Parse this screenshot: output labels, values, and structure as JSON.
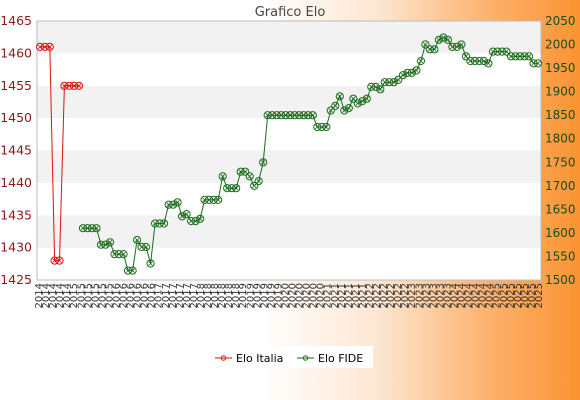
{
  "chart_data": {
    "type": "line",
    "title": "Grafico Elo",
    "left_axis": {
      "ylim": [
        1425,
        1465
      ],
      "ticks": [
        "1425",
        "1430",
        "1435",
        "1440",
        "1445",
        "1450",
        "1455",
        "1460",
        "1465"
      ]
    },
    "right_axis": {
      "ylim": [
        1500,
        2050
      ],
      "ticks": [
        "1500",
        "1550",
        "1600",
        "1650",
        "1700",
        "1750",
        "1800",
        "1850",
        "1900",
        "1950",
        "2000",
        "2050"
      ]
    },
    "x_tick_labels": [
      "2014",
      "2014",
      "2014",
      "2014",
      "2014",
      "2015",
      "2015",
      "2015",
      "2015",
      "2015",
      "2015",
      "2016",
      "2016",
      "2016",
      "2016",
      "2016",
      "2016",
      "2017",
      "2017",
      "2017",
      "2017",
      "2017",
      "2017",
      "2018",
      "2018",
      "2018",
      "2018",
      "2018",
      "2018",
      "2019",
      "2019",
      "2019",
      "2019",
      "2019",
      "2019",
      "2020",
      "2020",
      "2020",
      "2020",
      "2020",
      "2020",
      "2021",
      "2021",
      "2021",
      "2021",
      "2021",
      "2021",
      "2022",
      "2022",
      "2022",
      "2022",
      "2022",
      "2022",
      "2023",
      "2023",
      "2023",
      "2023",
      "2023",
      "2023",
      "2024",
      "2024",
      "2024",
      "2024",
      "2024",
      "2024",
      "2025",
      "2025",
      "2025",
      "2025",
      "2025",
      "2025",
      "2025"
    ],
    "grid": "horizontal bands",
    "legend_position": "bottom",
    "series": [
      {
        "name": "Elo Italia",
        "axis": "left",
        "color": "#dd1111",
        "values": [
          1461,
          1461,
          1461,
          1428,
          1428,
          1455,
          1455,
          1455,
          1455
        ]
      },
      {
        "name": "Elo FIDE",
        "axis": "right",
        "color": "#1a6b1a",
        "values": [
          1610,
          1610,
          1610,
          1610,
          1575,
          1575,
          1580,
          1555,
          1555,
          1555,
          1520,
          1520,
          1585,
          1570,
          1570,
          1535,
          1620,
          1620,
          1620,
          1660,
          1660,
          1665,
          1635,
          1640,
          1625,
          1625,
          1630,
          1670,
          1670,
          1670,
          1670,
          1720,
          1695,
          1695,
          1695,
          1730,
          1730,
          1720,
          1700,
          1710,
          1750,
          1850,
          1850,
          1850,
          1850,
          1850,
          1850,
          1850,
          1850,
          1850,
          1850,
          1850,
          1825,
          1825,
          1825,
          1860,
          1870,
          1890,
          1860,
          1865,
          1885,
          1875,
          1880,
          1885,
          1910,
          1910,
          1905,
          1920,
          1920,
          1920,
          1925,
          1935,
          1940,
          1940,
          1945,
          1965,
          2000,
          1990,
          1990,
          2010,
          2015,
          2010,
          1995,
          1995,
          2000,
          1975,
          1965,
          1965,
          1965,
          1965,
          1960,
          1985,
          1985,
          1985,
          1985,
          1975,
          1975,
          1975,
          1975,
          1975,
          1960,
          1960
        ]
      }
    ]
  }
}
